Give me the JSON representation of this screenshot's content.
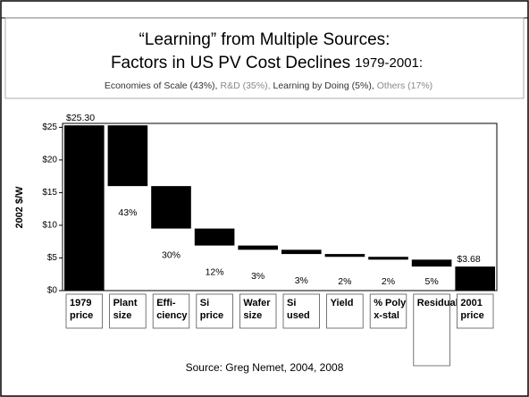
{
  "chart_data": {
    "type": "waterfall",
    "title": [
      "“Learning” from Multiple Sources:",
      "Factors in US PV Cost Declines",
      "1979-2001:"
    ],
    "subtitle": [
      {
        "text": "Economies of Scale (43%),",
        "color": "#333333"
      },
      {
        "text": "R&D (35%),",
        "color": "#8a8a8a"
      },
      {
        "text": "Learning by Doing (5%),",
        "color": "#333333"
      },
      {
        "text": "Others (17%)",
        "color": "#8a8a8a"
      }
    ],
    "y_label": "2002 $/W",
    "categories": [
      [
        "1979",
        "price"
      ],
      [
        "Plant",
        "size"
      ],
      [
        "Effi-",
        "ciency"
      ],
      [
        "Si",
        "price"
      ],
      [
        "Wafer",
        "size"
      ],
      [
        "Si",
        "used"
      ],
      [
        "Yield"
      ],
      [
        "% Poly",
        "x-stal"
      ],
      [
        "Residual"
      ],
      [
        "2001",
        "price"
      ]
    ],
    "category_styles": [
      "bold",
      "normal",
      "gray",
      "gray",
      "normal",
      "normal",
      "normal",
      "normal",
      "gray",
      "bold"
    ],
    "values": [
      25.3,
      -9.3,
      -6.5,
      -2.6,
      -0.65,
      -0.65,
      -0.43,
      -0.43,
      -1.06,
      3.68
    ],
    "totals": [
      true,
      false,
      false,
      false,
      false,
      false,
      false,
      false,
      false,
      true
    ],
    "bar_labels": [
      "$25.30",
      "43%",
      "30%",
      "12%",
      "3%",
      "3%",
      "2%",
      "2%",
      "5%",
      "$3.68"
    ],
    "color": "#000000",
    "ylim": [
      0,
      25.6
    ],
    "yticks": [
      {
        "value": 0,
        "label": "$0"
      },
      {
        "value": 5,
        "label": "$5"
      },
      {
        "value": 10,
        "label": "$10"
      },
      {
        "value": 15,
        "label": "$15"
      },
      {
        "value": 20,
        "label": "$20"
      },
      {
        "value": 25,
        "label": "$25"
      }
    ],
    "source": "Source: Greg Nemet, 2004, 2008"
  }
}
